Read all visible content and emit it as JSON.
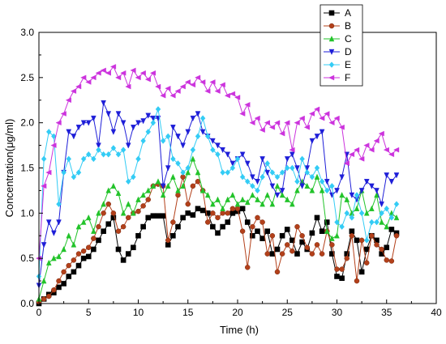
{
  "chart_data": {
    "type": "line",
    "xlabel": "Time  (h)",
    "ylabel": "Concentration(μg/ml)",
    "xlim": [
      0,
      40
    ],
    "ylim": [
      0,
      3.0
    ],
    "xticks": [
      "0",
      "5",
      "10",
      "15",
      "20",
      "25",
      "30",
      "35",
      "40"
    ],
    "yticks": [
      "0.0",
      "0.5",
      "1.0",
      "1.5",
      "2.0",
      "2.5",
      "3.0"
    ],
    "grid": false,
    "legend_position": "top-right",
    "series": [
      {
        "name": "A",
        "color": "#000000",
        "marker": "square",
        "x": [
          0,
          0.5,
          1,
          1.5,
          2,
          2.5,
          3,
          3.5,
          4,
          4.5,
          5,
          5.5,
          6,
          6.5,
          7,
          7.5,
          8,
          8.5,
          9,
          9.5,
          10,
          10.5,
          11,
          11.5,
          12,
          12.5,
          13,
          13.5,
          14,
          14.5,
          15,
          15.5,
          16,
          16.5,
          17,
          17.5,
          18,
          18.5,
          19,
          19.5,
          20,
          20.5,
          21,
          21.5,
          22,
          22.5,
          23,
          23.5,
          24,
          24.5,
          25,
          25.5,
          26,
          26.5,
          27,
          27.5,
          28,
          28.5,
          29,
          29.5,
          30,
          30.5,
          31,
          31.5,
          32,
          32.5,
          33,
          33.5,
          34,
          34.5,
          35,
          35.5,
          36
        ],
        "y": [
          0,
          0.05,
          0.1,
          0.12,
          0.18,
          0.22,
          0.3,
          0.35,
          0.42,
          0.5,
          0.52,
          0.6,
          0.7,
          0.8,
          0.88,
          0.95,
          0.6,
          0.48,
          0.55,
          0.62,
          0.75,
          0.85,
          0.95,
          0.97,
          0.97,
          0.97,
          0.65,
          0.75,
          0.85,
          0.95,
          1.0,
          0.98,
          1.05,
          1.03,
          1.0,
          0.85,
          0.78,
          0.85,
          0.9,
          1.0,
          1.02,
          1.05,
          0.9,
          0.75,
          0.8,
          0.72,
          0.8,
          0.55,
          0.6,
          0.75,
          0.82,
          0.7,
          0.55,
          0.68,
          0.6,
          0.78,
          0.95,
          0.8,
          0.9,
          0.55,
          0.3,
          0.28,
          0.55,
          0.8,
          0.7,
          0.35,
          0.6,
          0.75,
          0.7,
          0.55,
          0.62,
          0.82,
          0.78
        ]
      },
      {
        "name": "B",
        "color": "#b3401a",
        "marker": "circle",
        "x": [
          0,
          0.5,
          1,
          1.5,
          2,
          2.5,
          3,
          3.5,
          4,
          4.5,
          5,
          5.5,
          6,
          6.5,
          7,
          7.5,
          8,
          8.5,
          9,
          9.5,
          10,
          10.5,
          11,
          11.5,
          12,
          12.5,
          13,
          13.5,
          14,
          14.5,
          15,
          15.5,
          16,
          16.5,
          17,
          17.5,
          18,
          18.5,
          19,
          19.5,
          20,
          20.5,
          21,
          21.5,
          22,
          22.5,
          23,
          23.5,
          24,
          24.5,
          25,
          25.5,
          26,
          26.5,
          27,
          27.5,
          28,
          28.5,
          29,
          29.5,
          30,
          30.5,
          31,
          31.5,
          32,
          32.5,
          33,
          33.5,
          34,
          34.5,
          35,
          35.5,
          36
        ],
        "y": [
          0.02,
          0.05,
          0.08,
          0.15,
          0.25,
          0.35,
          0.42,
          0.48,
          0.55,
          0.58,
          0.62,
          0.72,
          0.85,
          1.0,
          1.1,
          1.0,
          0.8,
          0.85,
          0.95,
          1.0,
          1.02,
          1.08,
          1.15,
          1.3,
          1.32,
          1.3,
          0.7,
          0.9,
          1.2,
          1.4,
          1.1,
          1.3,
          1.35,
          1.25,
          0.9,
          1.0,
          0.95,
          1.0,
          1.0,
          1.05,
          1.05,
          0.8,
          0.4,
          0.85,
          0.95,
          0.9,
          0.55,
          0.75,
          0.35,
          0.55,
          0.65,
          0.58,
          0.85,
          0.75,
          0.62,
          0.55,
          0.65,
          0.55,
          0.8,
          0.65,
          0.38,
          0.38,
          0.5,
          0.75,
          0.25,
          0.7,
          0.45,
          0.75,
          0.65,
          0.6,
          0.48,
          0.47,
          0.75
        ]
      },
      {
        "name": "C",
        "color": "#22c32a",
        "marker": "triangle-up",
        "x": [
          0,
          0.5,
          1,
          1.5,
          2,
          2.5,
          3,
          3.5,
          4,
          4.5,
          5,
          5.5,
          6,
          6.5,
          7,
          7.5,
          8,
          8.5,
          9,
          9.5,
          10,
          10.5,
          11,
          11.5,
          12,
          12.5,
          13,
          13.5,
          14,
          14.5,
          15,
          15.5,
          16,
          16.5,
          17,
          17.5,
          18,
          18.5,
          19,
          19.5,
          20,
          20.5,
          21,
          21.5,
          22,
          22.5,
          23,
          23.5,
          24,
          24.5,
          25,
          25.5,
          26,
          26.5,
          27,
          27.5,
          28,
          28.5,
          29,
          29.5,
          30,
          30.5,
          31,
          31.5,
          32,
          32.5,
          33,
          33.5,
          34,
          34.5,
          35,
          35.5,
          36
        ],
        "y": [
          0.05,
          0.25,
          0.45,
          0.5,
          0.52,
          0.6,
          0.75,
          0.65,
          0.85,
          0.9,
          0.95,
          0.8,
          1.0,
          1.1,
          1.25,
          1.3,
          1.22,
          1.0,
          1.1,
          1.0,
          1.15,
          1.2,
          1.25,
          1.3,
          1.35,
          1.2,
          1.3,
          1.4,
          1.25,
          1.3,
          1.45,
          1.6,
          1.45,
          1.25,
          1.2,
          1.1,
          1.15,
          1.05,
          1.15,
          1.2,
          1.1,
          1.15,
          1.12,
          1.2,
          1.15,
          1.1,
          1.2,
          1.1,
          1.3,
          1.2,
          1.15,
          1.1,
          1.25,
          1.35,
          1.3,
          1.25,
          1.4,
          1.25,
          0.8,
          0.72,
          0.75,
          1.2,
          1.15,
          1.0,
          1.05,
          1.25,
          1.0,
          1.05,
          1.2,
          0.9,
          0.85,
          1.0,
          0.95
        ]
      },
      {
        "name": "D",
        "color": "#1e1ed8",
        "marker": "triangle-down",
        "x": [
          0,
          0.5,
          1,
          1.5,
          2,
          2.5,
          3,
          3.5,
          4,
          4.5,
          5,
          5.5,
          6,
          6.5,
          7,
          7.5,
          8,
          8.5,
          9,
          9.5,
          10,
          10.5,
          11,
          11.5,
          12,
          12.5,
          13,
          13.5,
          14,
          14.5,
          15,
          15.5,
          16,
          16.5,
          17,
          17.5,
          18,
          18.5,
          19,
          19.5,
          20,
          20.5,
          21,
          21.5,
          22,
          22.5,
          23,
          23.5,
          24,
          24.5,
          25,
          25.5,
          26,
          26.5,
          27,
          27.5,
          28,
          28.5,
          29,
          29.5,
          30,
          30.5,
          31,
          31.5,
          32,
          32.5,
          33,
          33.5,
          34,
          34.5,
          35,
          35.5,
          36
        ],
        "y": [
          0.2,
          0.65,
          0.9,
          0.78,
          0.9,
          1.45,
          1.9,
          1.85,
          1.95,
          2.0,
          2.0,
          2.05,
          1.75,
          2.22,
          2.1,
          1.9,
          2.1,
          2.0,
          1.75,
          1.95,
          2.0,
          2.02,
          2.08,
          2.05,
          2.05,
          1.3,
          1.5,
          1.95,
          1.85,
          1.75,
          1.9,
          2.05,
          2.1,
          1.9,
          1.85,
          1.8,
          1.75,
          1.7,
          1.65,
          1.55,
          1.6,
          1.65,
          1.55,
          1.4,
          1.35,
          1.6,
          1.45,
          1.3,
          1.2,
          1.25,
          1.6,
          1.65,
          1.5,
          1.3,
          1.5,
          1.8,
          1.85,
          1.9,
          1.35,
          1.2,
          1.25,
          1.4,
          1.65,
          1.2,
          1.15,
          1.25,
          1.35,
          1.3,
          1.25,
          1.1,
          1.42,
          1.35,
          1.42
        ]
      },
      {
        "name": "E",
        "color": "#33ccf5",
        "marker": "diamond",
        "x": [
          0,
          0.5,
          1,
          1.5,
          2,
          2.5,
          3,
          3.5,
          4,
          4.5,
          5,
          5.5,
          6,
          6.5,
          7,
          7.5,
          8,
          8.5,
          9,
          9.5,
          10,
          10.5,
          11,
          11.5,
          12,
          12.5,
          13,
          13.5,
          14,
          14.5,
          15,
          15.5,
          16,
          16.5,
          17,
          17.5,
          18,
          18.5,
          19,
          19.5,
          20,
          20.5,
          21,
          21.5,
          22,
          22.5,
          23,
          23.5,
          24,
          24.5,
          25,
          25.5,
          26,
          26.5,
          27,
          27.5,
          28,
          28.5,
          29,
          29.5,
          30,
          30.5,
          31,
          31.5,
          32,
          32.5,
          33,
          33.5,
          34,
          34.5,
          35,
          35.5,
          36
        ],
        "y": [
          0.3,
          1.6,
          1.9,
          1.85,
          1.1,
          1.45,
          1.6,
          1.4,
          1.45,
          1.6,
          1.65,
          1.6,
          1.7,
          1.65,
          1.65,
          1.72,
          1.65,
          1.7,
          1.35,
          1.4,
          1.6,
          1.8,
          1.9,
          2.0,
          2.15,
          1.8,
          1.85,
          1.6,
          1.55,
          1.45,
          1.5,
          1.7,
          1.85,
          2.05,
          1.85,
          1.7,
          1.65,
          1.45,
          1.45,
          1.5,
          1.6,
          1.4,
          1.35,
          1.3,
          1.25,
          1.4,
          1.55,
          1.45,
          1.4,
          1.45,
          1.5,
          1.5,
          1.35,
          1.6,
          1.45,
          1.4,
          1.5,
          1.35,
          1.25,
          1.3,
          0.9,
          0.85,
          1.0,
          0.95,
          1.2,
          1.0,
          0.7,
          0.9,
          0.9,
          1.0,
          1.05,
          0.95,
          1.1
        ]
      },
      {
        "name": "F",
        "color": "#cc33dd",
        "marker": "triangle-left",
        "x": [
          0,
          0.5,
          1,
          1.5,
          2,
          2.5,
          3,
          3.5,
          4,
          4.5,
          5,
          5.5,
          6,
          6.5,
          7,
          7.5,
          8,
          8.5,
          9,
          9.5,
          10,
          10.5,
          11,
          11.5,
          12,
          12.5,
          13,
          13.5,
          14,
          14.5,
          15,
          15.5,
          16,
          16.5,
          17,
          17.5,
          18,
          18.5,
          19,
          19.5,
          20,
          20.5,
          21,
          21.5,
          22,
          22.5,
          23,
          23.5,
          24,
          24.5,
          25,
          25.5,
          26,
          26.5,
          27,
          27.5,
          28,
          28.5,
          29,
          29.5,
          30,
          30.5,
          31,
          31.5,
          32,
          32.5,
          33,
          33.5,
          34,
          34.5,
          35,
          35.5,
          36
        ],
        "y": [
          0.5,
          1.3,
          1.45,
          1.75,
          2.0,
          2.1,
          2.25,
          2.35,
          2.4,
          2.5,
          2.45,
          2.5,
          2.55,
          2.58,
          2.55,
          2.62,
          2.5,
          2.55,
          2.4,
          2.58,
          2.5,
          2.55,
          2.48,
          2.55,
          2.4,
          2.3,
          2.38,
          2.3,
          2.35,
          2.4,
          2.45,
          2.42,
          2.5,
          2.45,
          2.35,
          2.45,
          2.35,
          2.42,
          2.3,
          2.32,
          2.28,
          2.1,
          2.2,
          2.0,
          2.05,
          1.92,
          2.0,
          1.95,
          2.0,
          1.88,
          2.0,
          1.7,
          2.0,
          2.05,
          1.95,
          2.1,
          2.15,
          2.05,
          2.1,
          2.0,
          2.05,
          1.95,
          1.55,
          1.65,
          1.7,
          1.6,
          1.75,
          1.7,
          1.8,
          1.88,
          1.7,
          1.65,
          1.7
        ]
      }
    ]
  }
}
